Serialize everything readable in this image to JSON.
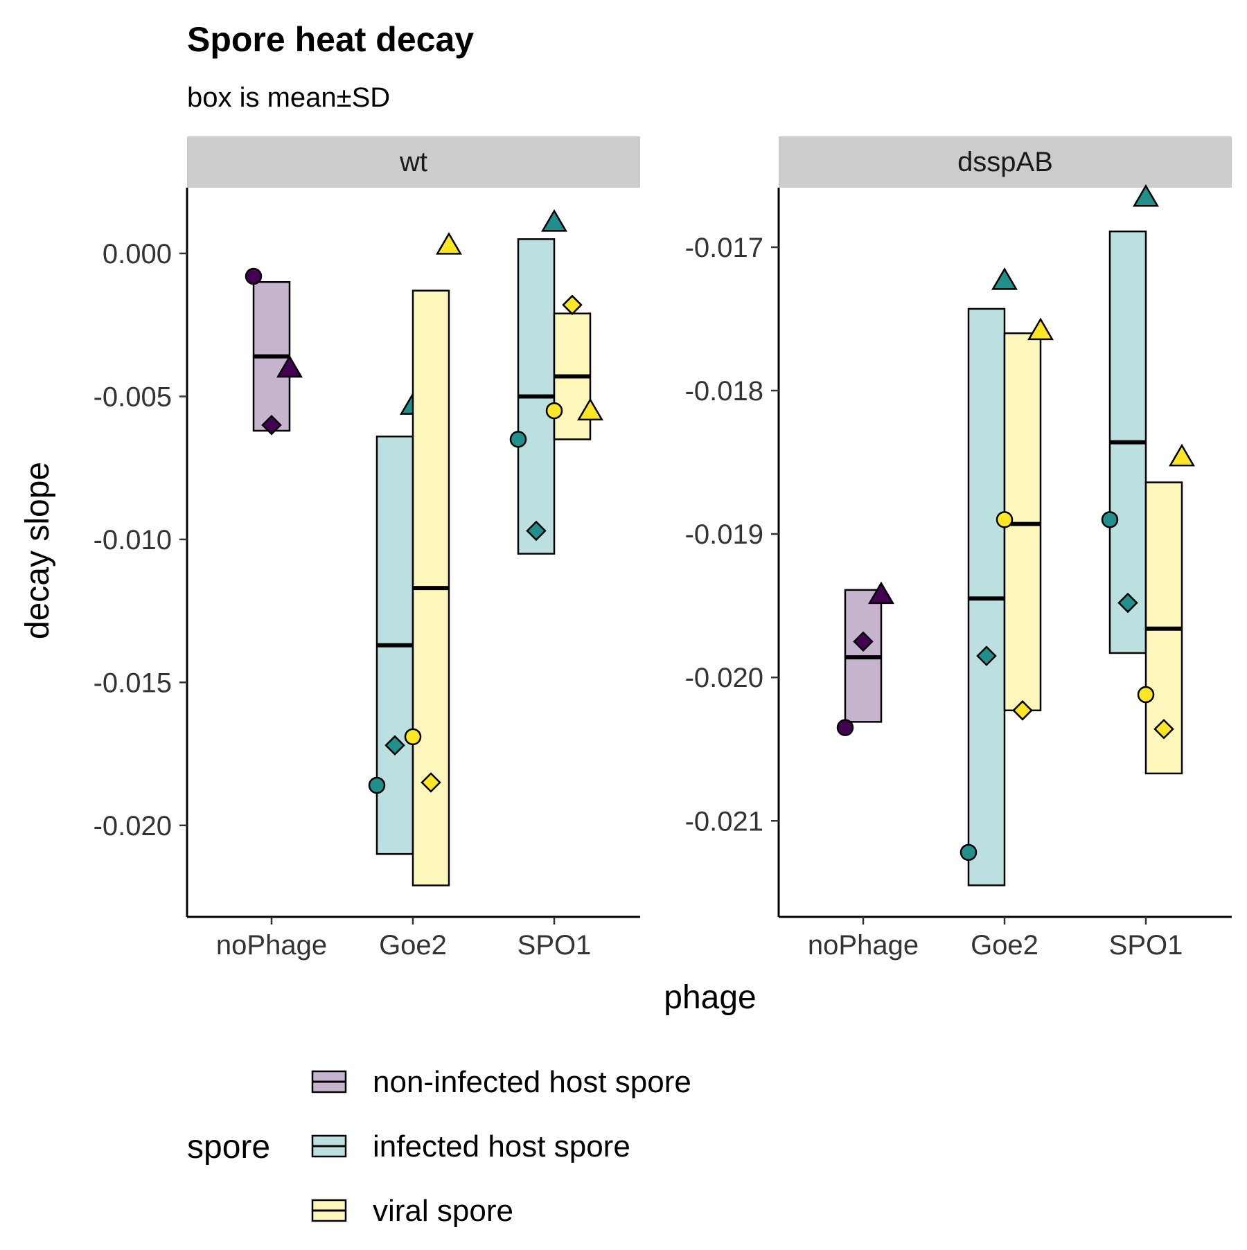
{
  "chart_data": {
    "type": "box",
    "title": "Spore heat decay",
    "subtitle": "box is mean±SD",
    "xlabel": "phage",
    "ylabel": "decay slope",
    "categories": [
      "noPhage",
      "Goe2",
      "SPO1"
    ],
    "legend": {
      "title": "spore",
      "position": "bottom",
      "entries": [
        {
          "name": "non-infected host spore",
          "fill": "#c6b4cf",
          "point_color": "#440154"
        },
        {
          "name": "infected host spore",
          "fill": "#bcdfe0",
          "point_color": "#21908c"
        },
        {
          "name": "viral spore",
          "fill": "#fdf7bb",
          "point_color": "#fde725"
        }
      ]
    },
    "grid": false,
    "panels": [
      {
        "strip": "wt",
        "ylim": [
          -0.0232,
          0.0023
        ],
        "ticks": [
          0.0,
          -0.005,
          -0.01,
          -0.015,
          -0.02
        ],
        "tick_labels": [
          "0.000",
          "-0.005",
          "-0.010",
          "-0.015",
          "-0.020"
        ],
        "boxes": [
          {
            "category": "noPhage",
            "spore": "non-infected host spore",
            "mean": -0.0036,
            "lower": -0.0062,
            "upper": -0.001,
            "points": [
              {
                "shape": "circle",
                "y": -0.0008
              },
              {
                "shape": "diamond",
                "y": -0.006
              },
              {
                "shape": "triangle",
                "y": -0.004
              }
            ]
          },
          {
            "category": "Goe2",
            "spore": "infected host spore",
            "mean": -0.0137,
            "lower": -0.021,
            "upper": -0.0064,
            "points": [
              {
                "shape": "circle",
                "y": -0.0186
              },
              {
                "shape": "diamond",
                "y": -0.0172
              },
              {
                "shape": "triangle",
                "y": -0.0053
              }
            ]
          },
          {
            "category": "Goe2",
            "spore": "viral spore",
            "mean": -0.0117,
            "lower": -0.0221,
            "upper": -0.0013,
            "points": [
              {
                "shape": "circle",
                "y": -0.0169
              },
              {
                "shape": "diamond",
                "y": -0.0185
              },
              {
                "shape": "triangle",
                "y": 0.0003
              }
            ]
          },
          {
            "category": "SPO1",
            "spore": "infected host spore",
            "mean": -0.005,
            "lower": -0.0105,
            "upper": 0.0005,
            "points": [
              {
                "shape": "circle",
                "y": -0.0065
              },
              {
                "shape": "diamond",
                "y": -0.0097
              },
              {
                "shape": "triangle",
                "y": 0.0011
              }
            ]
          },
          {
            "category": "SPO1",
            "spore": "viral spore",
            "mean": -0.0043,
            "lower": -0.0065,
            "upper": -0.0021,
            "points": [
              {
                "shape": "circle",
                "y": -0.0055
              },
              {
                "shape": "diamond",
                "y": -0.0018
              },
              {
                "shape": "triangle",
                "y": -0.0055
              }
            ]
          }
        ]
      },
      {
        "strip": "dsspAB",
        "ylim": [
          -0.02167,
          -0.016585
        ],
        "ticks": [
          -0.017,
          -0.018,
          -0.019,
          -0.02,
          -0.021
        ],
        "tick_labels": [
          "-0.017",
          "-0.018",
          "-0.019",
          "-0.020",
          "-0.021"
        ],
        "boxes": [
          {
            "category": "noPhage",
            "spore": "non-infected host spore",
            "mean": -0.01986,
            "lower": -0.02031,
            "upper": -0.01939,
            "points": [
              {
                "shape": "circle",
                "y": -0.02035
              },
              {
                "shape": "diamond",
                "y": -0.01975
              },
              {
                "shape": "triangle",
                "y": -0.01942
              }
            ]
          },
          {
            "category": "Goe2",
            "spore": "infected host spore",
            "mean": -0.01945,
            "lower": -0.02145,
            "upper": -0.01743,
            "points": [
              {
                "shape": "circle",
                "y": -0.02122
              },
              {
                "shape": "diamond",
                "y": -0.01985
              },
              {
                "shape": "triangle",
                "y": -0.01723
              }
            ]
          },
          {
            "category": "Goe2",
            "spore": "viral spore",
            "mean": -0.01893,
            "lower": -0.02023,
            "upper": -0.0176,
            "points": [
              {
                "shape": "circle",
                "y": -0.0189
              },
              {
                "shape": "diamond",
                "y": -0.02023
              },
              {
                "shape": "triangle",
                "y": -0.01758
              }
            ]
          },
          {
            "category": "SPO1",
            "spore": "infected host spore",
            "mean": -0.01836,
            "lower": -0.01983,
            "upper": -0.01689,
            "points": [
              {
                "shape": "circle",
                "y": -0.0189
              },
              {
                "shape": "diamond",
                "y": -0.01948
              },
              {
                "shape": "triangle",
                "y": -0.01665
              }
            ]
          },
          {
            "category": "SPO1",
            "spore": "viral spore",
            "mean": -0.01966,
            "lower": -0.02067,
            "upper": -0.01864,
            "points": [
              {
                "shape": "circle",
                "y": -0.02012
              },
              {
                "shape": "diamond",
                "y": -0.02036
              },
              {
                "shape": "triangle",
                "y": -0.01846
              }
            ]
          }
        ]
      }
    ]
  }
}
